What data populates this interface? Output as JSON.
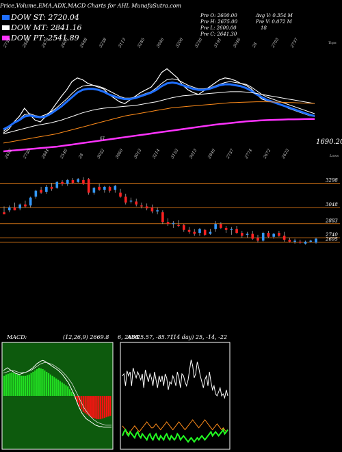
{
  "header": {
    "title": "Price,Volume,EMA,ADX,MACD Charts for AHL MunafaSutra.com",
    "dow_st": "DOW ST: 2720.04",
    "dow_mt": "DOW MT: 2841.16",
    "dow_pt": "DOW PT: 2541.89",
    "prev_o": "Pre O: 2600.00",
    "prev_h": "Pre H: 2675.00",
    "prev_l": "Pre L: 2600.00",
    "prev_c": "Pre C: 2641.30",
    "avg_v": "Avg V: 0.354 M",
    "pre_v": "Pre V: 0.072 M",
    "vol_extra": "18"
  },
  "colors": {
    "dow_st": "#1f6fff",
    "dow_mt": "#ffffff",
    "dow_pt": "#ff33ff",
    "up_candle": "#3399ff",
    "down_candle": "#ff2222",
    "level_line": "#ff8c1a",
    "macd_bg": "#0d5a0d",
    "macd_pos": "#22dd22",
    "macd_neg": "#ff1111",
    "adx_green": "#22ff22",
    "adx_orange": "#ff8c1a"
  },
  "chart_data": [
    {
      "type": "line",
      "name": "ema-panel",
      "top_labels": [
        "2735",
        "2849",
        "2679",
        "2600",
        "2688",
        "3238",
        "3113",
        "3285",
        "3046",
        "3200",
        "3230",
        "3191",
        "3046",
        "28",
        "2793",
        "2737"
      ],
      "top_right_label": "Tops",
      "bottom_labels": [
        "2652",
        "2730",
        "2844",
        "2540",
        "28",
        "3032",
        "3060",
        "3013",
        "3214",
        "3153",
        "3013",
        "2840",
        "2737",
        "2774",
        "2672",
        "2623"
      ],
      "bottom_right_label": "Lows",
      "mid_label": "61",
      "last_value_label": "1690.20",
      "series": [
        {
          "color_key": "dow_mt",
          "values": [
            2580,
            2620,
            2700,
            2760,
            2850,
            2780,
            2720,
            2700,
            2760,
            2820,
            2900,
            2980,
            3050,
            3140,
            3180,
            3160,
            3120,
            3100,
            3080,
            3060,
            3000,
            2960,
            2920,
            2900,
            2940,
            2980,
            3020,
            3050,
            3080,
            3150,
            3240,
            3280,
            3230,
            3180,
            3100,
            3050,
            3020,
            3000,
            3040,
            3080,
            3120,
            3160,
            3180,
            3170,
            3150,
            3120,
            3100,
            3060,
            3000,
            2950,
            2930,
            2920,
            2900,
            2880,
            2850,
            2830,
            2810,
            2790,
            2770,
            2760
          ]
        },
        {
          "color_key": "dow_mt",
          "values": [
            2600,
            2640,
            2690,
            2730,
            2780,
            2790,
            2770,
            2760,
            2780,
            2810,
            2850,
            2900,
            2950,
            3010,
            3060,
            3090,
            3100,
            3100,
            3090,
            3070,
            3040,
            3010,
            2980,
            2960,
            2960,
            2970,
            2990,
            3010,
            3030,
            3070,
            3120,
            3160,
            3170,
            3160,
            3130,
            3100,
            3080,
            3060,
            3060,
            3070,
            3090,
            3110,
            3130,
            3140,
            3130,
            3120,
            3110,
            3080,
            3040,
            3000,
            2970,
            2950,
            2930,
            2910,
            2890,
            2870,
            2850,
            2830,
            2810,
            2790
          ]
        },
        {
          "color_key": "dow_st",
          "values": [
            2620,
            2650,
            2690,
            2720,
            2760,
            2770,
            2760,
            2750,
            2760,
            2790,
            2830,
            2870,
            2920,
            2970,
            3020,
            3050,
            3060,
            3060,
            3050,
            3030,
            3000,
            2980,
            2960,
            2950,
            2950,
            2960,
            2980,
            3000,
            3020,
            3050,
            3090,
            3120,
            3130,
            3120,
            3100,
            3080,
            3060,
            3050,
            3050,
            3060,
            3080,
            3100,
            3110,
            3110,
            3100,
            3090,
            3070,
            3040,
            3000,
            2970,
            2940,
            2920,
            2900,
            2880,
            2860,
            2840,
            2820,
            2800,
            2780,
            2765
          ]
        },
        {
          "color_key": "dow_mt",
          "values": [
            2570,
            2585,
            2600,
            2615,
            2630,
            2645,
            2660,
            2670,
            2680,
            2690,
            2705,
            2720,
            2740,
            2760,
            2780,
            2800,
            2815,
            2830,
            2840,
            2850,
            2855,
            2860,
            2865,
            2870,
            2875,
            2880,
            2890,
            2900,
            2910,
            2920,
            2935,
            2950,
            2965,
            2975,
            2985,
            2990,
            2995,
            3000,
            3005,
            3010,
            3015,
            3020,
            3025,
            3030,
            3030,
            3030,
            3025,
            3020,
            3010,
            3000,
            2990,
            2980,
            2970,
            2960,
            2950,
            2940,
            2930,
            2920,
            2910,
            2900
          ]
        },
        {
          "color_key": "level_line",
          "values": [
            2470,
            2480,
            2490,
            2500,
            2510,
            2520,
            2530,
            2540,
            2550,
            2560,
            2570,
            2585,
            2600,
            2615,
            2630,
            2645,
            2660,
            2675,
            2690,
            2705,
            2720,
            2735,
            2750,
            2765,
            2775,
            2785,
            2795,
            2805,
            2815,
            2825,
            2835,
            2845,
            2855,
            2860,
            2865,
            2870,
            2875,
            2880,
            2885,
            2890,
            2895,
            2900,
            2905,
            2910,
            2912,
            2914,
            2916,
            2918,
            2920,
            2920,
            2920,
            2918,
            2916,
            2914,
            2912,
            2910,
            2908,
            2906,
            2904,
            2902
          ]
        },
        {
          "color_key": "dow_pt",
          "values": [
            2380,
            2385,
            2390,
            2395,
            2400,
            2405,
            2410,
            2415,
            2420,
            2425,
            2430,
            2438,
            2446,
            2454,
            2462,
            2470,
            2478,
            2486,
            2494,
            2502,
            2510,
            2518,
            2526,
            2534,
            2542,
            2550,
            2558,
            2566,
            2574,
            2582,
            2590,
            2598,
            2606,
            2614,
            2622,
            2630,
            2638,
            2646,
            2654,
            2662,
            2670,
            2676,
            2682,
            2688,
            2694,
            2700,
            2706,
            2710,
            2714,
            2718,
            2720,
            2722,
            2724,
            2726,
            2728,
            2729,
            2730,
            2731,
            2732,
            2733
          ]
        }
      ]
    },
    {
      "type": "candlestick",
      "name": "price-panel",
      "levels": [
        "3298",
        "3048",
        "2883",
        "2740",
        "2695"
      ],
      "level_values": [
        3298,
        3048,
        2883,
        2740,
        2695
      ],
      "ylim": [
        2650,
        3420
      ],
      "candles": [
        [
          3000,
          3060,
          2980,
          2980
        ],
        [
          3020,
          3070,
          3000,
          3050
        ],
        [
          3050,
          3100,
          3020,
          3020
        ],
        [
          3040,
          3090,
          3020,
          3080
        ],
        [
          3080,
          3120,
          3050,
          3060
        ],
        [
          3070,
          3160,
          3050,
          3150
        ],
        [
          3160,
          3230,
          3140,
          3220
        ],
        [
          3230,
          3260,
          3190,
          3200
        ],
        [
          3210,
          3280,
          3190,
          3260
        ],
        [
          3260,
          3300,
          3220,
          3240
        ],
        [
          3250,
          3320,
          3240,
          3310
        ],
        [
          3310,
          3330,
          3270,
          3290
        ],
        [
          3290,
          3340,
          3270,
          3330
        ],
        [
          3330,
          3350,
          3290,
          3300
        ],
        [
          3310,
          3350,
          3300,
          3340
        ],
        [
          3330,
          3360,
          3280,
          3290
        ],
        [
          3340,
          3350,
          3180,
          3200
        ],
        [
          3200,
          3260,
          3180,
          3250
        ],
        [
          3260,
          3290,
          3220,
          3230
        ],
        [
          3230,
          3270,
          3200,
          3260
        ],
        [
          3260,
          3270,
          3200,
          3220
        ],
        [
          3230,
          3280,
          3200,
          3270
        ],
        [
          3200,
          3240,
          3150,
          3160
        ],
        [
          3160,
          3190,
          3080,
          3100
        ],
        [
          3110,
          3150,
          3090,
          3120
        ],
        [
          3110,
          3140,
          3060,
          3080
        ],
        [
          3070,
          3100,
          3040,
          3060
        ],
        [
          3060,
          3090,
          3020,
          3040
        ],
        [
          3050,
          3080,
          2990,
          3010
        ],
        [
          3010,
          3050,
          2980,
          3020
        ],
        [
          3000,
          3020,
          2880,
          2900
        ],
        [
          2900,
          2940,
          2860,
          2880
        ],
        [
          2880,
          2910,
          2840,
          2890
        ],
        [
          2870,
          2920,
          2850,
          2860
        ],
        [
          2870,
          2880,
          2800,
          2820
        ],
        [
          2820,
          2850,
          2780,
          2800
        ],
        [
          2800,
          2830,
          2760,
          2780
        ],
        [
          2790,
          2840,
          2760,
          2830
        ],
        [
          2820,
          2830,
          2760,
          2770
        ],
        [
          2780,
          2830,
          2770,
          2800
        ],
        [
          2830,
          2910,
          2800,
          2880
        ],
        [
          2880,
          2900,
          2830,
          2840
        ],
        [
          2840,
          2860,
          2790,
          2820
        ],
        [
          2820,
          2850,
          2770,
          2830
        ],
        [
          2830,
          2860,
          2780,
          2790
        ],
        [
          2790,
          2810,
          2740,
          2760
        ],
        [
          2770,
          2800,
          2740,
          2780
        ],
        [
          2780,
          2810,
          2720,
          2730
        ],
        [
          2740,
          2770,
          2690,
          2710
        ],
        [
          2710,
          2800,
          2700,
          2790
        ],
        [
          2790,
          2810,
          2740,
          2750
        ],
        [
          2750,
          2790,
          2730,
          2780
        ],
        [
          2790,
          2810,
          2750,
          2760
        ],
        [
          2760,
          2800,
          2700,
          2720
        ],
        [
          2720,
          2740,
          2690,
          2700
        ],
        [
          2700,
          2730,
          2680,
          2710
        ],
        [
          2700,
          2720,
          2680,
          2690
        ],
        [
          2680,
          2710,
          2670,
          2700
        ],
        [
          2700,
          2720,
          2690,
          2710
        ],
        [
          2690,
          2740,
          2680,
          2730
        ]
      ]
    },
    {
      "type": "bar",
      "name": "macd-panel",
      "title": "MACD:",
      "params": "(12,26,9) 2669.8",
      "extra": "6, 2686",
      "histogram": [
        30,
        32,
        33,
        34,
        35,
        34,
        33,
        32,
        31,
        30,
        30,
        30,
        31,
        32,
        34,
        36,
        38,
        40,
        42,
        41,
        40,
        38,
        36,
        34,
        32,
        30,
        28,
        26,
        24,
        22,
        20,
        18,
        16,
        14,
        10,
        6,
        2,
        -4,
        -10,
        -16,
        -20,
        -24,
        -26,
        -28,
        -30,
        -32,
        -33,
        -34,
        -35,
        -35,
        -35,
        -34,
        -33,
        -32,
        -31,
        -30
      ],
      "line_a": [
        38,
        40,
        42,
        40,
        38,
        36,
        34,
        33,
        32,
        33,
        34,
        35,
        36,
        38,
        40,
        42,
        45,
        48,
        50,
        52,
        53,
        52,
        50,
        48,
        46,
        44,
        42,
        40,
        38,
        35,
        32,
        28,
        24,
        20,
        14,
        8,
        2,
        -6,
        -14,
        -20,
        -26,
        -30,
        -34,
        -36,
        -38,
        -40,
        -42,
        -44,
        -45,
        -46,
        -46,
        -47,
        -47,
        -47,
        -47,
        -47
      ],
      "line_b": [
        34,
        35,
        36,
        37,
        38,
        38,
        37,
        36,
        35,
        35,
        35,
        35,
        36,
        37,
        38,
        40,
        42,
        44,
        46,
        48,
        49,
        50,
        50,
        49,
        48,
        47,
        45,
        43,
        41,
        39,
        36,
        33,
        30,
        26,
        22,
        18,
        12,
        6,
        0,
        -6,
        -12,
        -18,
        -22,
        -26,
        -30,
        -33,
        -36,
        -38,
        -40,
        -41,
        -42,
        -43,
        -44,
        -44,
        -44,
        -44
      ]
    },
    {
      "type": "line",
      "name": "adx-panel",
      "title": "ADX",
      "params": "25.57, -85.71",
      "extra": "(14 day) 25, -14, -22",
      "di_plus": [
        70,
        72,
        60,
        75,
        70,
        74,
        60,
        78,
        72,
        68,
        74,
        70,
        66,
        72,
        58,
        76,
        70,
        64,
        72,
        68,
        60,
        74,
        66,
        58,
        70,
        64,
        70,
        60,
        72,
        68,
        56,
        64,
        62,
        70,
        66,
        60,
        74,
        68,
        58,
        72,
        70,
        64,
        60,
        66,
        76,
        86,
        80,
        68,
        72,
        84,
        78,
        70,
        64,
        58,
        66,
        70,
        60,
        74,
        64,
        56,
        60,
        52,
        50,
        54,
        58,
        50,
        52,
        48,
        56,
        50
      ],
      "adx": [
        20,
        18,
        16,
        14,
        12,
        14,
        16,
        18,
        20,
        18,
        16,
        14,
        16,
        18,
        20,
        22,
        24,
        22,
        20,
        18,
        18,
        20,
        22,
        20,
        18,
        16,
        18,
        20,
        22,
        24,
        22,
        20,
        18,
        16,
        18,
        20,
        22,
        24,
        22,
        20,
        18,
        16,
        18,
        20,
        22,
        24,
        26,
        24,
        22,
        20,
        18,
        20,
        22,
        24,
        26,
        24,
        22,
        20,
        18,
        16,
        18,
        20,
        22,
        20,
        18,
        16,
        18,
        16,
        14,
        16
      ],
      "di_minus": [
        10,
        14,
        16,
        12,
        10,
        14,
        12,
        10,
        8,
        12,
        14,
        10,
        8,
        12,
        10,
        8,
        6,
        10,
        12,
        8,
        6,
        10,
        12,
        8,
        6,
        10,
        8,
        6,
        10,
        12,
        8,
        6,
        10,
        8,
        6,
        8,
        12,
        10,
        6,
        8,
        10,
        8,
        6,
        4,
        6,
        8,
        6,
        4,
        6,
        8,
        6,
        8,
        10,
        8,
        6,
        8,
        10,
        12,
        14,
        10,
        12,
        14,
        12,
        10,
        12,
        14,
        16,
        12,
        14,
        16
      ]
    }
  ]
}
